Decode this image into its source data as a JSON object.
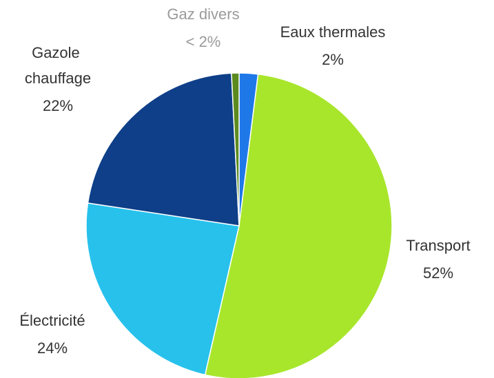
{
  "chart_data": {
    "type": "pie",
    "categories": [
      "Eaux thermales",
      "Transport",
      "Électricité",
      "Gazole chauffage",
      "Gaz divers"
    ],
    "values": [
      2,
      52,
      24,
      22,
      0.8
    ],
    "value_labels": [
      "2%",
      "52%",
      "24%",
      "22%",
      "< 2%"
    ],
    "colors": [
      "#1f78e8",
      "#a8e62c",
      "#27c1ec",
      "#0e3f88",
      "#5b8a1f"
    ]
  }
}
